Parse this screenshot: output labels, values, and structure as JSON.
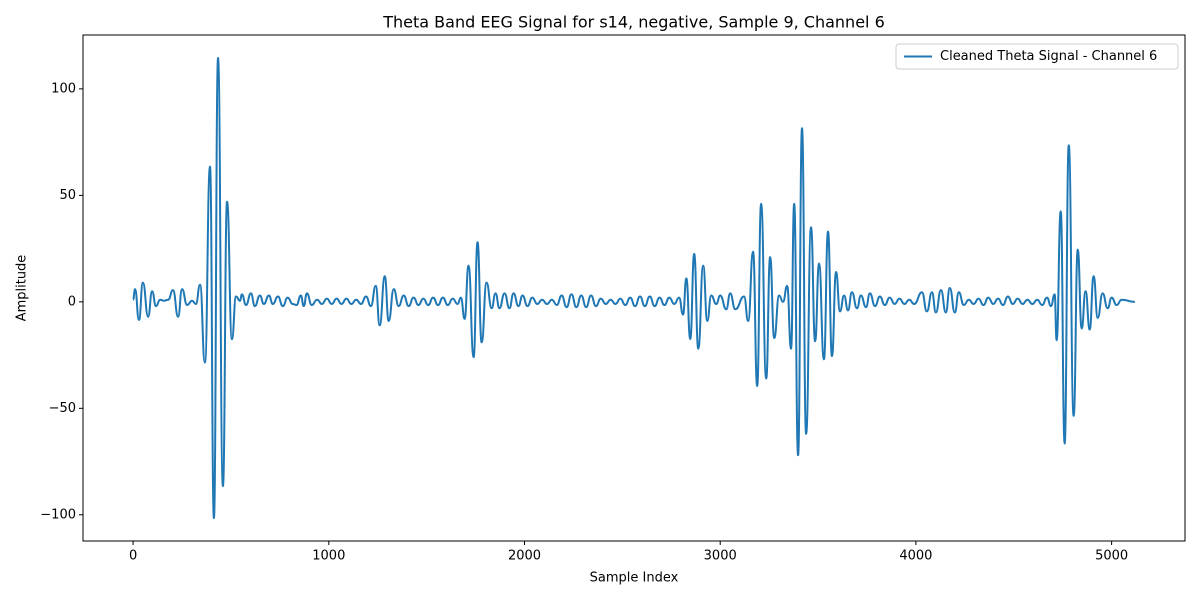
{
  "chart_data": {
    "type": "line",
    "title": "Theta Band EEG Signal for s14, negative, Sample 9, Channel 6",
    "x_label": "Sample Index",
    "y_label": "Amplitude",
    "xlim": [
      -256,
      5375
    ],
    "ylim": [
      -112.3,
      125.3
    ],
    "xticks": [
      0,
      1000,
      2000,
      3000,
      4000,
      5000
    ],
    "yticks": [
      {
        "value": -100,
        "label": "−100"
      },
      {
        "value": -50,
        "label": "−50"
      },
      0,
      50,
      100
    ],
    "legend": "upper right",
    "x": [
      0,
      10,
      30,
      50,
      77,
      97,
      117,
      138,
      158,
      179,
      204,
      230,
      250,
      276,
      301,
      321,
      342,
      367,
      393,
      413,
      434,
      459,
      480,
      505,
      526,
      546,
      556,
      577,
      602,
      622,
      648,
      668,
      694,
      714,
      740,
      765,
      790,
      815,
      835,
      857,
      872,
      888,
      913,
      940,
      965,
      990,
      1015,
      1040,
      1065,
      1090,
      1115,
      1140,
      1165,
      1190,
      1215,
      1240,
      1260,
      1286,
      1306,
      1332,
      1357,
      1383,
      1408,
      1433,
      1458,
      1483,
      1508,
      1533,
      1558,
      1583,
      1608,
      1633,
      1658,
      1675,
      1694,
      1714,
      1740,
      1760,
      1781,
      1806,
      1832,
      1852,
      1872,
      1898,
      1923,
      1944,
      1969,
      1990,
      2015,
      2040,
      2065,
      2090,
      2115,
      2140,
      2165,
      2190,
      2215,
      2240,
      2265,
      2290,
      2315,
      2340,
      2365,
      2390,
      2415,
      2440,
      2465,
      2490,
      2515,
      2540,
      2565,
      2590,
      2615,
      2640,
      2665,
      2690,
      2715,
      2740,
      2765,
      2790,
      2810,
      2827,
      2847,
      2867,
      2888,
      2913,
      2934,
      2954,
      2980,
      3000,
      3031,
      3051,
      3077,
      3122,
      3143,
      3168,
      3189,
      3209,
      3235,
      3255,
      3276,
      3301,
      3321,
      3342,
      3362,
      3378,
      3398,
      3418,
      3439,
      3464,
      3485,
      3505,
      3530,
      3551,
      3571,
      3592,
      3612,
      3633,
      3653,
      3673,
      3699,
      3719,
      3745,
      3765,
      3791,
      3816,
      3841,
      3866,
      3891,
      3916,
      3941,
      3966,
      3991,
      4031,
      4056,
      4082,
      4102,
      4128,
      4153,
      4173,
      4199,
      4219,
      4245,
      4270,
      4295,
      4320,
      4345,
      4370,
      4395,
      4420,
      4445,
      4470,
      4495,
      4520,
      4545,
      4570,
      4595,
      4620,
      4645,
      4670,
      4690,
      4709,
      4719,
      4740,
      4760,
      4781,
      4806,
      4827,
      4847,
      4867,
      4888,
      4908,
      4929,
      4954,
      4980,
      5000,
      5026,
      5051,
      5119
    ],
    "series": [
      {
        "name": "Cleaned Theta Signal - Channel 6",
        "color": "#1f77b4",
        "values": [
          1,
          6,
          -8.5,
          9,
          -7,
          5,
          -2,
          1,
          0.5,
          1,
          5.5,
          -7,
          6,
          -1.5,
          0.5,
          -1,
          8,
          -28.5,
          63.5,
          -101.5,
          114.5,
          -86.5,
          47,
          -17.5,
          2.5,
          0.5,
          3.5,
          -1.5,
          4,
          -2,
          3,
          -1,
          3,
          -1,
          2.5,
          -2,
          2,
          -1,
          -1.5,
          3,
          -2,
          4,
          -1.5,
          1,
          -1,
          1.5,
          -1,
          1.5,
          -1,
          1.5,
          -1,
          1,
          -1,
          2.5,
          -2,
          7.5,
          -11,
          12,
          -9,
          6,
          -2,
          3,
          -2,
          2,
          -1.5,
          1.5,
          -1.5,
          2,
          -1.5,
          2,
          -1.5,
          1.5,
          -1,
          2,
          -8,
          17,
          -26,
          28,
          -19,
          9,
          -3,
          4,
          -3,
          4,
          -3,
          4,
          -2,
          3,
          -2,
          2,
          -1,
          1,
          -1,
          1,
          -1.5,
          3,
          -2.5,
          3.5,
          -2.5,
          3,
          -2.5,
          3,
          -2,
          1.5,
          -1,
          1,
          -1,
          1.5,
          -1.5,
          2,
          -2,
          2.5,
          -2,
          2.5,
          -2,
          2,
          -1.5,
          2,
          -1,
          2,
          -6,
          11,
          -17.5,
          22.5,
          -22,
          17,
          -9,
          3,
          -1,
          3,
          -3.5,
          4,
          -3.5,
          2.5,
          -9,
          23.5,
          -39.5,
          46,
          -36,
          21,
          -17,
          3,
          0,
          7.5,
          -22,
          46,
          -72,
          81.5,
          -62,
          35,
          -18.5,
          18,
          -27,
          33,
          -25.5,
          14,
          -4.5,
          3,
          -4,
          4.5,
          -3,
          3,
          -2.5,
          4,
          -2,
          2.5,
          -1.5,
          2,
          -1,
          1.5,
          -1,
          1,
          -1,
          4.5,
          -4.5,
          4.5,
          -5,
          5.5,
          -5,
          6.5,
          -5,
          4.5,
          -1.5,
          1,
          -1,
          1.5,
          -1.5,
          2,
          -1,
          1.5,
          -1.5,
          2.5,
          -1,
          1.5,
          -1,
          1,
          -1,
          1,
          -1.5,
          2,
          -2,
          3.5,
          -18,
          42.5,
          -66.5,
          73.5,
          -53.5,
          24.5,
          -12.5,
          5,
          -13,
          12,
          -7.5,
          4,
          -3,
          2,
          -1.5,
          1,
          0
        ]
      }
    ]
  }
}
